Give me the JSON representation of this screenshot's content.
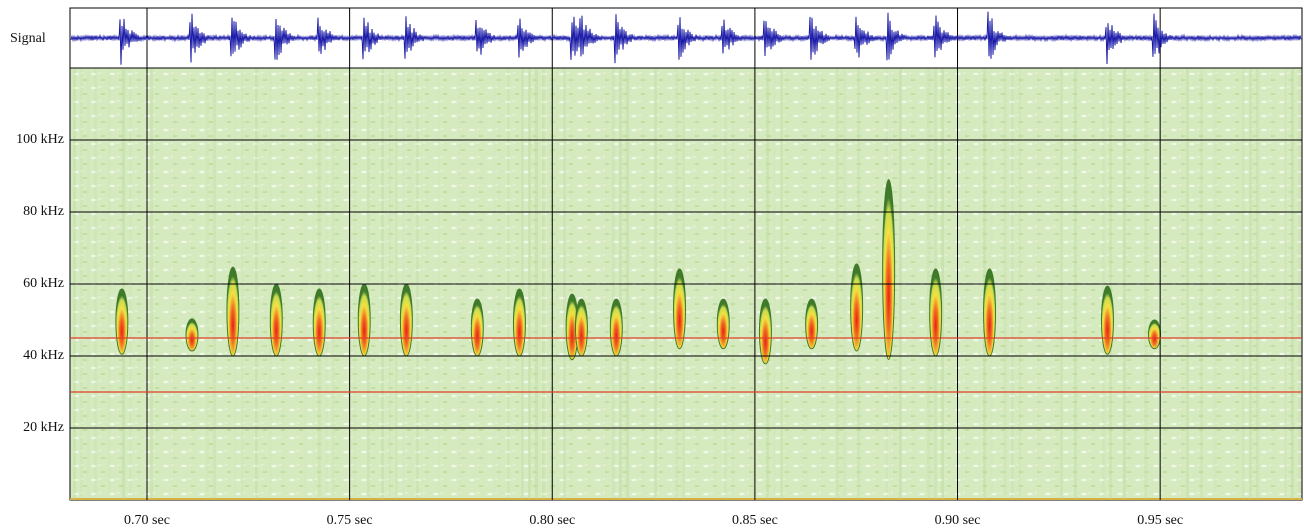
{
  "chart_data": {
    "type": "spectrogram",
    "signal_label": "Signal",
    "signal_color": "#1a1aa8",
    "xlim": [
      0.681,
      0.985
    ],
    "xticks": [
      {
        "value": 0.7,
        "label": "0.70 sec"
      },
      {
        "value": 0.75,
        "label": "0.75 sec"
      },
      {
        "value": 0.8,
        "label": "0.80 sec"
      },
      {
        "value": 0.85,
        "label": "0.85 sec"
      },
      {
        "value": 0.9,
        "label": "0.90 sec"
      },
      {
        "value": 0.95,
        "label": "0.95 sec"
      }
    ],
    "ylim": [
      0,
      120
    ],
    "yticks": [
      {
        "value": 20,
        "label": "20 kHz"
      },
      {
        "value": 40,
        "label": "40 kHz"
      },
      {
        "value": 60,
        "label": "60 kHz"
      },
      {
        "value": 80,
        "label": "80 kHz"
      },
      {
        "value": 100,
        "label": "100 kHz"
      }
    ],
    "grid": true,
    "reference_lines": [
      {
        "value": 45,
        "color": "#e0402a"
      },
      {
        "value": 30,
        "color": "#e0402a"
      }
    ],
    "calls": [
      {
        "time": 0.6938,
        "low": 40.5,
        "high": 58.6
      },
      {
        "time": 0.7111,
        "low": 41.4,
        "high": 50.3
      },
      {
        "time": 0.7212,
        "low": 40,
        "high": 64.7
      },
      {
        "time": 0.7319,
        "low": 40,
        "high": 60
      },
      {
        "time": 0.7425,
        "low": 40,
        "high": 58.6
      },
      {
        "time": 0.7536,
        "low": 40,
        "high": 60
      },
      {
        "time": 0.764,
        "low": 40,
        "high": 60
      },
      {
        "time": 0.7815,
        "low": 40,
        "high": 55.8
      },
      {
        "time": 0.7919,
        "low": 40,
        "high": 58.6
      },
      {
        "time": 0.8049,
        "low": 39,
        "high": 57.2
      },
      {
        "time": 0.8072,
        "low": 40,
        "high": 55.8
      },
      {
        "time": 0.8158,
        "low": 40,
        "high": 55.8
      },
      {
        "time": 0.8314,
        "low": 42,
        "high": 64.2
      },
      {
        "time": 0.8422,
        "low": 42,
        "high": 55.8
      },
      {
        "time": 0.8526,
        "low": 37.8,
        "high": 55.8
      },
      {
        "time": 0.864,
        "low": 42,
        "high": 55.8
      },
      {
        "time": 0.8751,
        "low": 41.4,
        "high": 65.6
      },
      {
        "time": 0.883,
        "low": 39,
        "high": 89
      },
      {
        "time": 0.8946,
        "low": 40,
        "high": 64.2
      },
      {
        "time": 0.9079,
        "low": 40,
        "high": 64.2
      },
      {
        "time": 0.937,
        "low": 40.5,
        "high": 59.4
      },
      {
        "time": 0.9486,
        "low": 42,
        "high": 50
      }
    ]
  }
}
